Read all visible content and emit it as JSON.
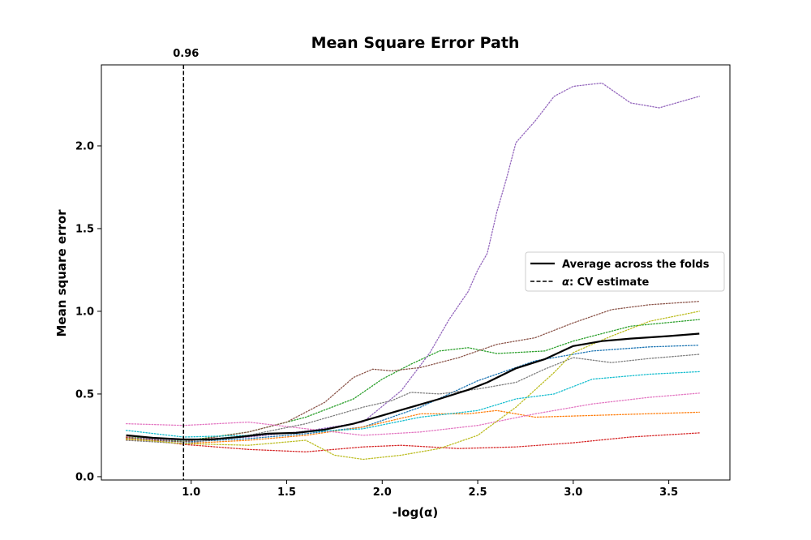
{
  "chart_data": {
    "type": "line",
    "title": "Mean Square Error Path",
    "xlabel": "-log(α)",
    "ylabel": "Mean square error",
    "xlim": [
      0.53,
      3.82
    ],
    "ylim": [
      -0.02,
      2.49
    ],
    "x_ticks": [
      1.0,
      1.5,
      2.0,
      2.5,
      3.0,
      3.5
    ],
    "y_ticks": [
      0.0,
      0.5,
      1.0,
      1.5,
      2.0
    ],
    "x_tick_labels": [
      "1.0",
      "1.5",
      "2.0",
      "2.5",
      "3.0",
      "3.5"
    ],
    "y_tick_labels": [
      "0.0",
      "0.5",
      "1.0",
      "1.5",
      "2.0"
    ],
    "grid": false,
    "legend_position": "center-right",
    "vline": {
      "x": 0.96,
      "label": "0.96"
    },
    "legend": {
      "average_label": "Average across the folds",
      "cv_label_symbol": "α",
      "cv_label_rest": ": CV estimate"
    },
    "average": {
      "name": "Average across the folds",
      "color": "#000000",
      "points": [
        [
          0.66,
          0.25
        ],
        [
          0.8,
          0.235
        ],
        [
          0.96,
          0.225
        ],
        [
          1.1,
          0.225
        ],
        [
          1.25,
          0.24
        ],
        [
          1.4,
          0.26
        ],
        [
          1.55,
          0.265
        ],
        [
          1.7,
          0.285
        ],
        [
          1.85,
          0.32
        ],
        [
          2.0,
          0.37
        ],
        [
          2.15,
          0.42
        ],
        [
          2.3,
          0.47
        ],
        [
          2.45,
          0.525
        ],
        [
          2.55,
          0.57
        ],
        [
          2.7,
          0.655
        ],
        [
          2.85,
          0.71
        ],
        [
          3.0,
          0.79
        ],
        [
          3.15,
          0.82
        ],
        [
          3.3,
          0.835
        ],
        [
          3.5,
          0.85
        ],
        [
          3.66,
          0.865
        ]
      ]
    },
    "folds": [
      {
        "color": "#1f77b4",
        "points": [
          [
            0.66,
            0.23
          ],
          [
            0.96,
            0.21
          ],
          [
            1.3,
            0.23
          ],
          [
            1.6,
            0.26
          ],
          [
            1.9,
            0.3
          ],
          [
            2.2,
            0.42
          ],
          [
            2.5,
            0.58
          ],
          [
            2.8,
            0.7
          ],
          [
            3.1,
            0.76
          ],
          [
            3.4,
            0.785
          ],
          [
            3.66,
            0.795
          ]
        ]
      },
      {
        "color": "#ff7f0e",
        "points": [
          [
            0.66,
            0.225
          ],
          [
            0.96,
            0.2
          ],
          [
            1.3,
            0.22
          ],
          [
            1.6,
            0.25
          ],
          [
            1.9,
            0.3
          ],
          [
            2.2,
            0.38
          ],
          [
            2.45,
            0.38
          ],
          [
            2.6,
            0.4
          ],
          [
            2.8,
            0.36
          ],
          [
            3.1,
            0.37
          ],
          [
            3.66,
            0.39
          ]
        ]
      },
      {
        "color": "#2ca02c",
        "points": [
          [
            0.66,
            0.24
          ],
          [
            0.96,
            0.215
          ],
          [
            1.3,
            0.27
          ],
          [
            1.6,
            0.36
          ],
          [
            1.85,
            0.47
          ],
          [
            2.0,
            0.59
          ],
          [
            2.15,
            0.68
          ],
          [
            2.3,
            0.76
          ],
          [
            2.45,
            0.78
          ],
          [
            2.6,
            0.745
          ],
          [
            2.85,
            0.76
          ],
          [
            3.0,
            0.82
          ],
          [
            3.3,
            0.91
          ],
          [
            3.66,
            0.95
          ]
        ]
      },
      {
        "color": "#d62728",
        "points": [
          [
            0.66,
            0.24
          ],
          [
            0.96,
            0.195
          ],
          [
            1.3,
            0.165
          ],
          [
            1.6,
            0.15
          ],
          [
            1.9,
            0.18
          ],
          [
            2.1,
            0.19
          ],
          [
            2.4,
            0.17
          ],
          [
            2.7,
            0.18
          ],
          [
            3.0,
            0.205
          ],
          [
            3.3,
            0.24
          ],
          [
            3.66,
            0.265
          ]
        ]
      },
      {
        "color": "#9467bd",
        "points": [
          [
            0.66,
            0.235
          ],
          [
            0.96,
            0.22
          ],
          [
            1.3,
            0.24
          ],
          [
            1.6,
            0.275
          ],
          [
            1.9,
            0.33
          ],
          [
            2.1,
            0.52
          ],
          [
            2.25,
            0.75
          ],
          [
            2.35,
            0.95
          ],
          [
            2.45,
            1.12
          ],
          [
            2.5,
            1.25
          ],
          [
            2.55,
            1.35
          ],
          [
            2.6,
            1.6
          ],
          [
            2.65,
            1.8
          ],
          [
            2.7,
            2.02
          ],
          [
            2.8,
            2.15
          ],
          [
            2.9,
            2.3
          ],
          [
            3.0,
            2.36
          ],
          [
            3.15,
            2.38
          ],
          [
            3.3,
            2.26
          ],
          [
            3.45,
            2.23
          ],
          [
            3.66,
            2.3
          ]
        ]
      },
      {
        "color": "#8c564b",
        "points": [
          [
            0.66,
            0.235
          ],
          [
            0.96,
            0.21
          ],
          [
            1.3,
            0.27
          ],
          [
            1.5,
            0.33
          ],
          [
            1.7,
            0.45
          ],
          [
            1.85,
            0.6
          ],
          [
            1.95,
            0.65
          ],
          [
            2.05,
            0.64
          ],
          [
            2.2,
            0.66
          ],
          [
            2.4,
            0.72
          ],
          [
            2.6,
            0.8
          ],
          [
            2.8,
            0.84
          ],
          [
            3.0,
            0.93
          ],
          [
            3.2,
            1.01
          ],
          [
            3.4,
            1.04
          ],
          [
            3.66,
            1.06
          ]
        ]
      },
      {
        "color": "#e377c2",
        "points": [
          [
            0.66,
            0.32
          ],
          [
            0.96,
            0.31
          ],
          [
            1.3,
            0.33
          ],
          [
            1.6,
            0.29
          ],
          [
            1.9,
            0.25
          ],
          [
            2.2,
            0.27
          ],
          [
            2.5,
            0.31
          ],
          [
            2.8,
            0.38
          ],
          [
            3.1,
            0.44
          ],
          [
            3.4,
            0.48
          ],
          [
            3.66,
            0.505
          ]
        ]
      },
      {
        "color": "#7f7f7f",
        "points": [
          [
            0.66,
            0.22
          ],
          [
            0.96,
            0.2
          ],
          [
            1.3,
            0.25
          ],
          [
            1.6,
            0.32
          ],
          [
            1.9,
            0.42
          ],
          [
            2.05,
            0.46
          ],
          [
            2.15,
            0.51
          ],
          [
            2.3,
            0.5
          ],
          [
            2.5,
            0.53
          ],
          [
            2.7,
            0.57
          ],
          [
            2.85,
            0.65
          ],
          [
            3.0,
            0.72
          ],
          [
            3.2,
            0.69
          ],
          [
            3.4,
            0.715
          ],
          [
            3.66,
            0.74
          ]
        ]
      },
      {
        "color": "#bcbd22",
        "points": [
          [
            0.66,
            0.23
          ],
          [
            0.96,
            0.2
          ],
          [
            1.3,
            0.19
          ],
          [
            1.6,
            0.22
          ],
          [
            1.75,
            0.13
          ],
          [
            1.9,
            0.105
          ],
          [
            2.1,
            0.13
          ],
          [
            2.3,
            0.17
          ],
          [
            2.5,
            0.25
          ],
          [
            2.7,
            0.42
          ],
          [
            2.9,
            0.63
          ],
          [
            3.0,
            0.75
          ],
          [
            3.2,
            0.85
          ],
          [
            3.4,
            0.94
          ],
          [
            3.66,
            1.0
          ]
        ]
      },
      {
        "color": "#17becf",
        "points": [
          [
            0.66,
            0.28
          ],
          [
            0.96,
            0.24
          ],
          [
            1.3,
            0.25
          ],
          [
            1.6,
            0.27
          ],
          [
            1.9,
            0.29
          ],
          [
            2.2,
            0.36
          ],
          [
            2.5,
            0.4
          ],
          [
            2.7,
            0.47
          ],
          [
            2.9,
            0.5
          ],
          [
            3.1,
            0.59
          ],
          [
            3.4,
            0.62
          ],
          [
            3.66,
            0.635
          ]
        ]
      }
    ]
  }
}
